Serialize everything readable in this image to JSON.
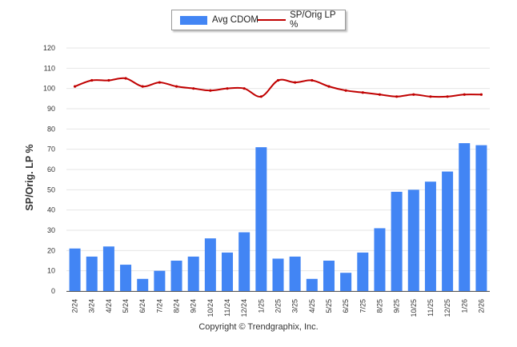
{
  "chart_data": {
    "type": "bar+line",
    "title": "",
    "ylabel": "SP/Orig. LP %",
    "xlabel": "",
    "ylim": [
      0,
      120
    ],
    "yticks": [
      0,
      10,
      20,
      30,
      40,
      50,
      60,
      70,
      80,
      90,
      100,
      110,
      120
    ],
    "categories": [
      "2/24",
      "3/24",
      "4/24",
      "5/24",
      "6/24",
      "7/24",
      "8/24",
      "9/24",
      "10/24",
      "11/24",
      "12/24",
      "1/25",
      "2/25",
      "3/25",
      "4/25",
      "5/25",
      "6/25",
      "7/25",
      "8/25",
      "9/25",
      "10/25",
      "11/25",
      "12/25",
      "1/26",
      "2/26"
    ],
    "series": [
      {
        "name": "Avg CDOM",
        "kind": "bar",
        "color": "#4285f4",
        "values": [
          21,
          17,
          22,
          13,
          6,
          10,
          15,
          17,
          26,
          19,
          29,
          71,
          16,
          17,
          6,
          15,
          9,
          19,
          31,
          49,
          50,
          54,
          59,
          73,
          72
        ]
      },
      {
        "name": "SP/Orig LP %",
        "kind": "line",
        "color": "#c00000",
        "values": [
          101,
          104,
          104,
          105,
          101,
          103,
          101,
          100,
          99,
          100,
          100,
          96,
          104,
          103,
          104,
          101,
          99,
          98,
          97,
          96,
          97,
          96,
          96,
          97,
          97
        ]
      }
    ],
    "legend": "top-center",
    "grid": true
  },
  "legend": {
    "bar_label": "Avg CDOM",
    "line_label": "SP/Orig LP %",
    "bar_color": "#4285f4",
    "line_color": "#c00000"
  },
  "footer": {
    "copyright": "Copyright © Trendgraphix, Inc."
  }
}
